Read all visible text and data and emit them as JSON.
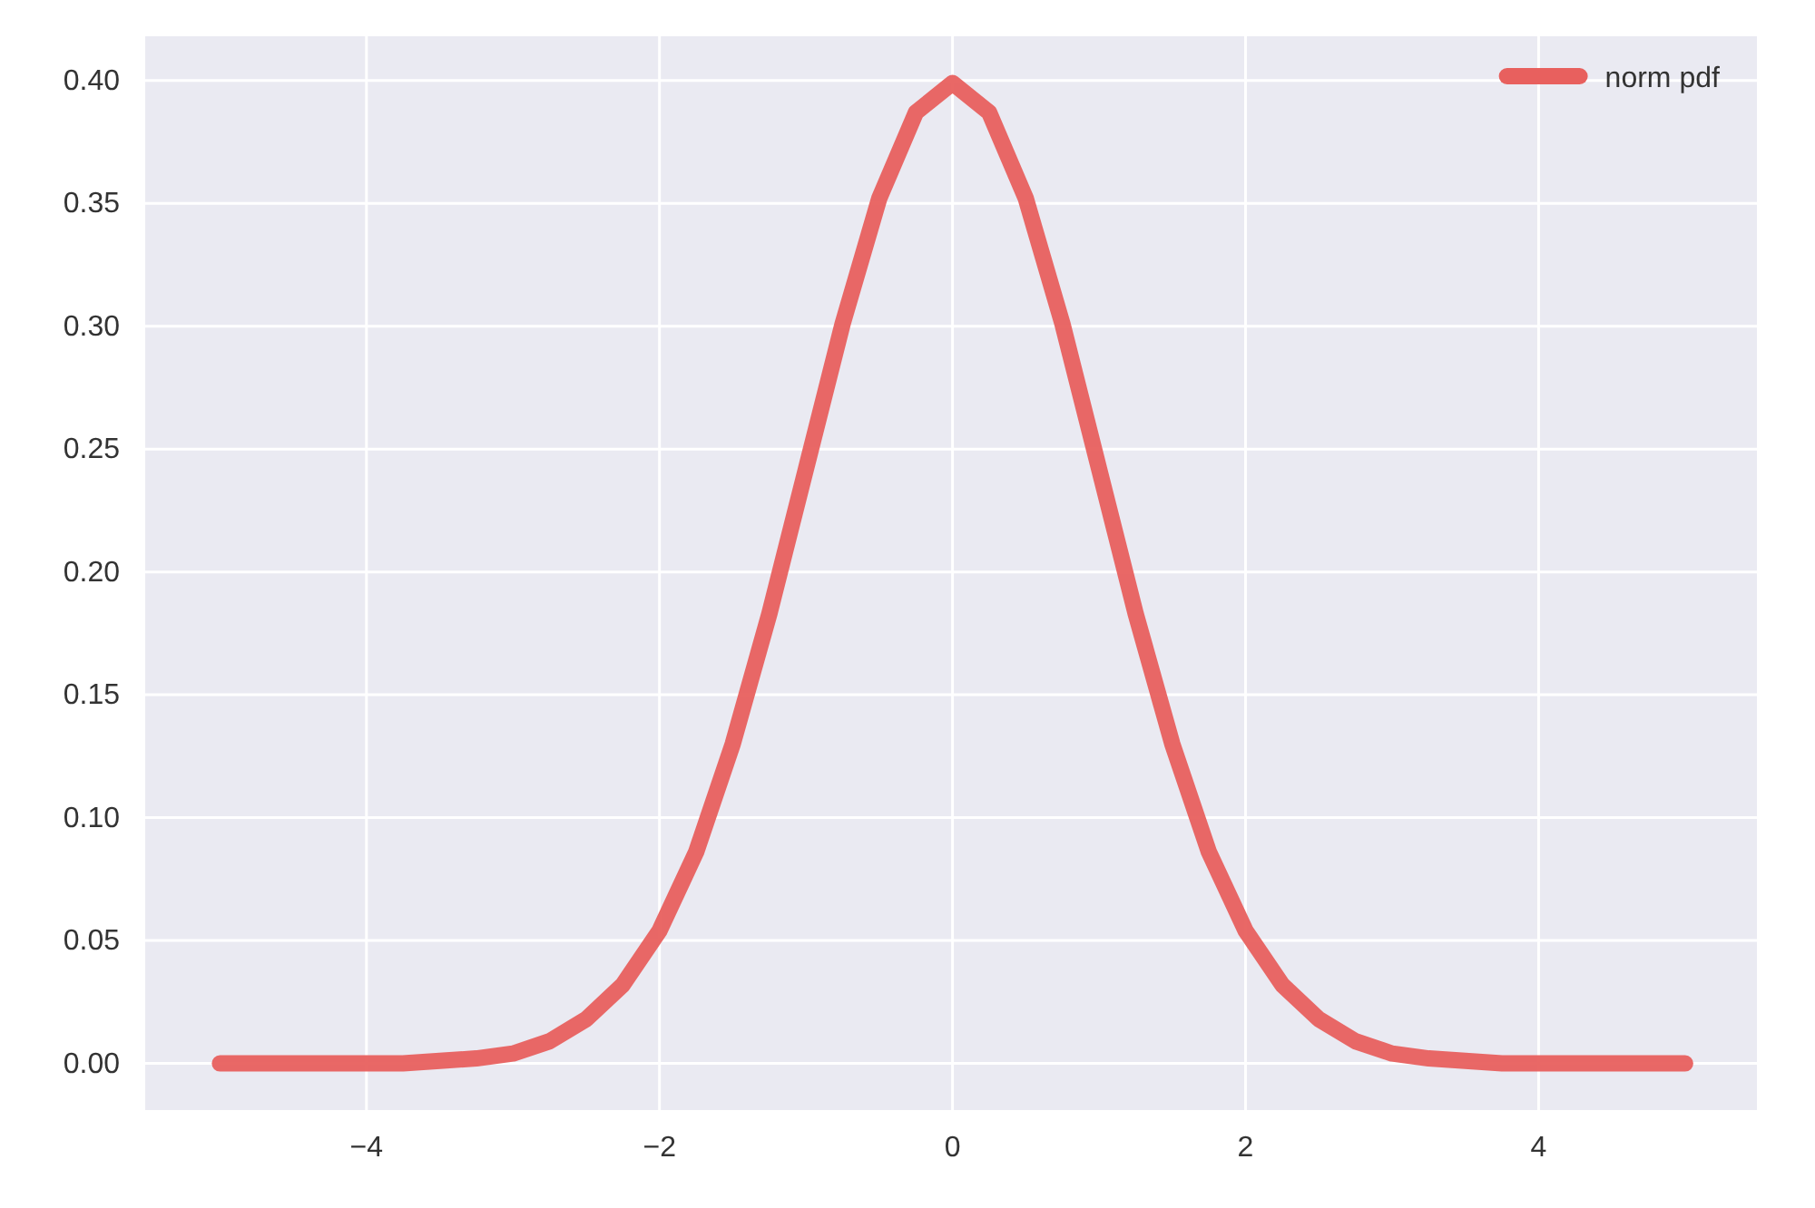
{
  "chart_data": {
    "type": "line",
    "x": [
      -5,
      -4.75,
      -4.5,
      -4.25,
      -4,
      -3.75,
      -3.5,
      -3.25,
      -3,
      -2.75,
      -2.5,
      -2.25,
      -2,
      -1.75,
      -1.5,
      -1.25,
      -1,
      -0.75,
      -0.5,
      -0.25,
      0,
      0.25,
      0.5,
      0.75,
      1,
      1.25,
      1.5,
      1.75,
      2,
      2.25,
      2.5,
      2.75,
      3,
      3.25,
      3.5,
      3.75,
      4,
      4.25,
      4.5,
      4.75,
      5
    ],
    "series": [
      {
        "name": "norm pdf",
        "color": "#e8605e",
        "values": [
          0,
          0,
          0,
          0,
          0,
          0,
          0.001,
          0.002,
          0.004,
          0.009,
          0.018,
          0.032,
          0.054,
          0.086,
          0.13,
          0.183,
          0.242,
          0.301,
          0.352,
          0.387,
          0.399,
          0.387,
          0.352,
          0.301,
          0.242,
          0.183,
          0.13,
          0.086,
          0.054,
          0.032,
          0.018,
          0.009,
          0.004,
          0.002,
          0.001,
          0,
          0,
          0,
          0,
          0,
          0
        ]
      }
    ],
    "xlim": [
      -5.51,
      5.49
    ],
    "ylim": [
      -0.019,
      0.418
    ],
    "xticks": [
      {
        "value": -4,
        "label": "−4"
      },
      {
        "value": -2,
        "label": "−2"
      },
      0,
      2,
      4
    ],
    "yticks": [
      {
        "value": 0,
        "label": "0.00"
      },
      {
        "value": 0.05,
        "label": "0.05"
      },
      {
        "value": 0.1,
        "label": "0.10"
      },
      {
        "value": 0.15,
        "label": "0.15"
      },
      {
        "value": 0.2,
        "label": "0.20"
      },
      {
        "value": 0.25,
        "label": "0.25"
      },
      {
        "value": 0.3,
        "label": "0.30"
      },
      {
        "value": 0.35,
        "label": "0.35"
      },
      {
        "value": 0.4,
        "label": "0.40"
      }
    ],
    "grid": true,
    "legend": "top right",
    "marker": "none",
    "line_style": "solid"
  }
}
